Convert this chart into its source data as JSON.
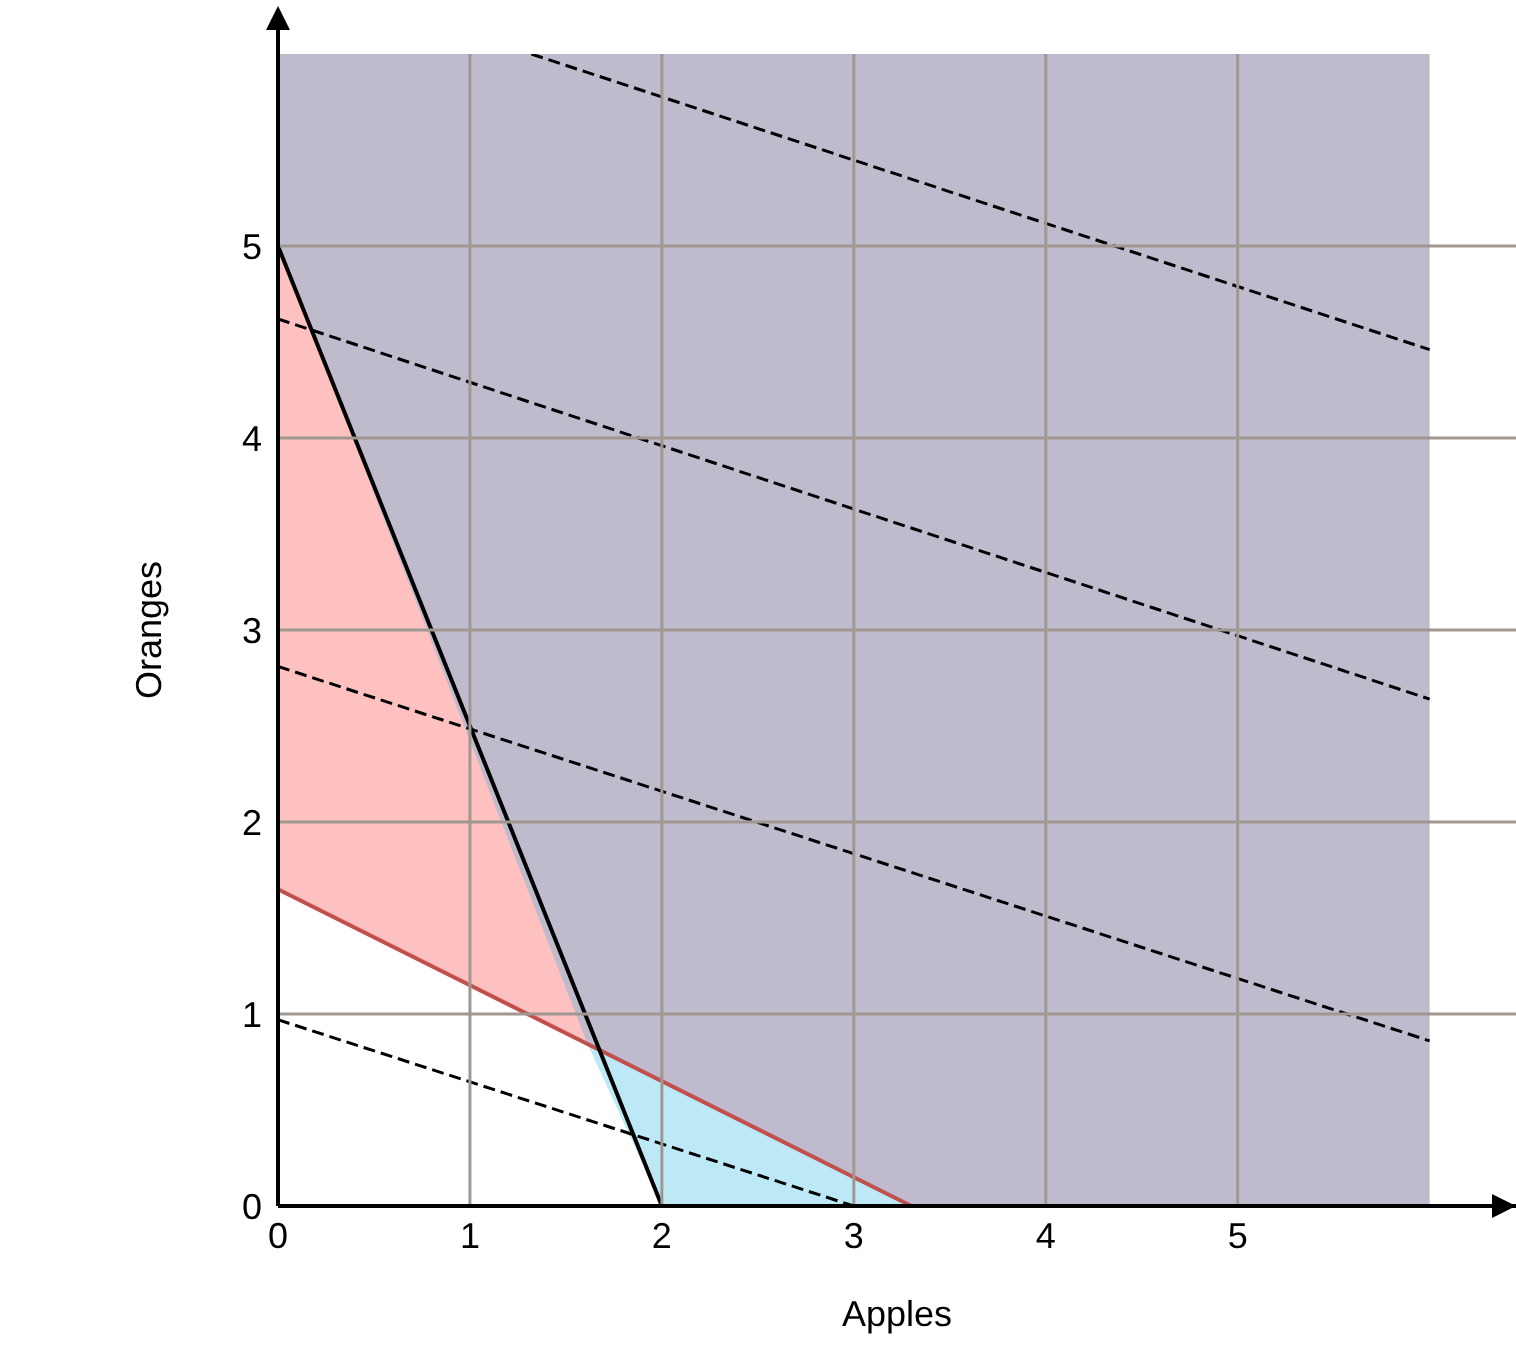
{
  "chart_data": {
    "type": "line",
    "xlabel": "Apples",
    "ylabel": "Oranges",
    "xlim": [
      0,
      6.45
    ],
    "ylim": [
      0,
      6
    ],
    "bands": [
      {
        "axis": "x",
        "from": 0,
        "to": 6,
        "color": "#c0bacd"
      }
    ],
    "xticks": [
      0,
      1,
      2,
      3,
      4,
      5
    ],
    "yticks": [
      0,
      1,
      2,
      3,
      4,
      5
    ],
    "grid": true,
    "legend": false,
    "marker": "none",
    "series": [
      {
        "type": "area",
        "color": "#ffc0c0",
        "x": [
          0,
          1.61
        ],
        "values": [
          5,
          0.85
        ]
      },
      {
        "type": "area",
        "color": "#bde9f7",
        "x": [
          1.61,
          3.3
        ],
        "values": [
          0.85,
          0
        ]
      },
      {
        "type": "area",
        "color": "#ffffff",
        "x": [
          0,
          1.61,
          2
        ],
        "values": [
          1.65,
          0.85,
          0
        ]
      },
      {
        "color": "#c0504d",
        "line_style": "solid",
        "x": [
          0,
          3.3
        ],
        "values": [
          1.65,
          0
        ]
      },
      {
        "color": "#000000",
        "line_style": "solid",
        "x": [
          0,
          2
        ],
        "values": [
          5,
          0
        ]
      },
      {
        "color": "#000000",
        "line_style": "dashed",
        "x": [
          0,
          3
        ],
        "values": [
          0.97,
          0
        ]
      },
      {
        "color": "#000000",
        "line_style": "dashed",
        "x": [
          0,
          6
        ],
        "values": [
          2.81,
          0.86
        ]
      },
      {
        "color": "#000000",
        "line_style": "dashed",
        "x": [
          0,
          6
        ],
        "values": [
          4.62,
          2.64
        ]
      },
      {
        "color": "#000000",
        "line_style": "dashed",
        "x": [
          1.32,
          6
        ],
        "values": [
          6,
          4.46
        ]
      }
    ]
  }
}
